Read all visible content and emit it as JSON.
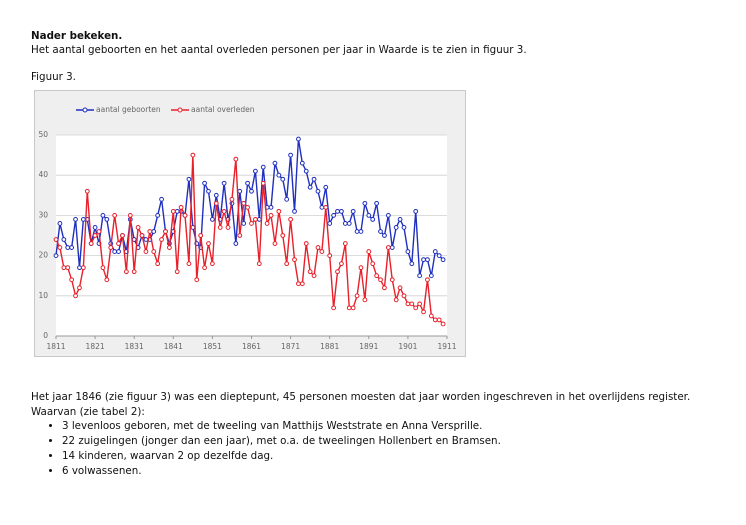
{
  "heading": "Nader bekeken.",
  "intro": "Het aantal geboorten en het aantal overleden personen per jaar in Waarde is te zien in figuur 3.",
  "figure_label": "Figuur 3.",
  "chart_data": {
    "type": "line",
    "x": [
      1811,
      1812,
      1813,
      1814,
      1815,
      1816,
      1817,
      1818,
      1819,
      1820,
      1821,
      1822,
      1823,
      1824,
      1825,
      1826,
      1827,
      1828,
      1829,
      1830,
      1831,
      1832,
      1833,
      1834,
      1835,
      1836,
      1837,
      1838,
      1839,
      1840,
      1841,
      1842,
      1843,
      1844,
      1845,
      1846,
      1847,
      1848,
      1849,
      1850,
      1851,
      1852,
      1853,
      1854,
      1855,
      1856,
      1857,
      1858,
      1859,
      1860,
      1861,
      1862,
      1863,
      1864,
      1865,
      1866,
      1867,
      1868,
      1869,
      1870,
      1871,
      1872,
      1873,
      1874,
      1875,
      1876,
      1877,
      1878,
      1879,
      1880,
      1881,
      1882,
      1883,
      1884,
      1885,
      1886,
      1887,
      1888,
      1889,
      1890,
      1891,
      1892,
      1893,
      1894,
      1895,
      1896,
      1897,
      1898,
      1899,
      1900,
      1901,
      1902,
      1903,
      1904,
      1905,
      1906,
      1907,
      1908,
      1909,
      1910
    ],
    "series": [
      {
        "name": "aantal geboorten",
        "color": "#1f2fbf",
        "values": [
          20,
          28,
          24,
          22,
          22,
          29,
          17,
          29,
          29,
          23,
          27,
          23,
          30,
          29,
          23,
          21,
          21,
          25,
          21,
          29,
          24,
          22,
          25,
          24,
          24,
          26,
          30,
          34,
          26,
          23,
          26,
          31,
          31,
          30,
          39,
          27,
          23,
          22,
          38,
          36,
          29,
          35,
          29,
          38,
          29,
          33,
          23,
          36,
          28,
          38,
          36,
          41,
          29,
          42,
          32,
          32,
          43,
          40,
          39,
          34,
          45,
          31,
          49,
          43,
          41,
          37,
          39,
          36,
          32,
          37,
          28,
          30,
          31,
          31,
          28,
          28,
          31,
          26,
          26,
          33,
          30,
          29,
          33,
          26,
          25,
          30,
          22,
          27,
          29,
          27,
          21,
          18,
          31,
          15,
          19,
          19,
          15,
          21,
          20,
          19
        ]
      },
      {
        "name": "aantal overleden",
        "color": "#e8202a",
        "values": [
          24,
          22,
          17,
          17,
          14,
          10,
          12,
          17,
          36,
          23,
          25,
          26,
          17,
          14,
          22,
          30,
          23,
          25,
          16,
          30,
          16,
          27,
          25,
          21,
          26,
          21,
          18,
          24,
          26,
          22,
          31,
          16,
          32,
          30,
          18,
          45,
          14,
          25,
          17,
          23,
          18,
          33,
          27,
          31,
          27,
          34,
          44,
          25,
          33,
          32,
          28,
          29,
          18,
          38,
          28,
          30,
          23,
          31,
          25,
          18,
          29,
          19,
          13,
          13,
          23,
          16,
          15,
          22,
          21,
          32,
          20,
          7,
          16,
          18,
          23,
          7,
          7,
          10,
          17,
          9,
          21,
          18,
          15,
          14,
          12,
          22,
          14,
          9,
          12,
          10,
          8,
          8,
          7,
          8,
          6,
          14,
          5,
          4,
          4,
          3
        ]
      }
    ],
    "xlim": [
      1811,
      1911
    ],
    "xticks": [
      1811,
      1821,
      1831,
      1841,
      1851,
      1861,
      1871,
      1881,
      1891,
      1901,
      1911
    ],
    "ylim": [
      0,
      50
    ],
    "yticks": [
      0,
      10,
      20,
      30,
      40,
      50
    ],
    "grid": true,
    "legend": "top"
  },
  "paragraph": "Het jaar 1846 (zie figuur 3) was een dieptepunt, 45 personen moesten dat jaar worden ingeschreven in het overlijdens register. Waarvan (zie tabel 2):",
  "bullets": [
    "3 levenloos geboren, met de tweeling van Matthijs Weststrate en Anna Versprille.",
    "22 zuigelingen (jonger dan een jaar), met o.a. de tweelingen Hollenbert en Bramsen.",
    "14 kinderen, waarvan 2 op dezelfde dag.",
    "6 volwassenen."
  ]
}
